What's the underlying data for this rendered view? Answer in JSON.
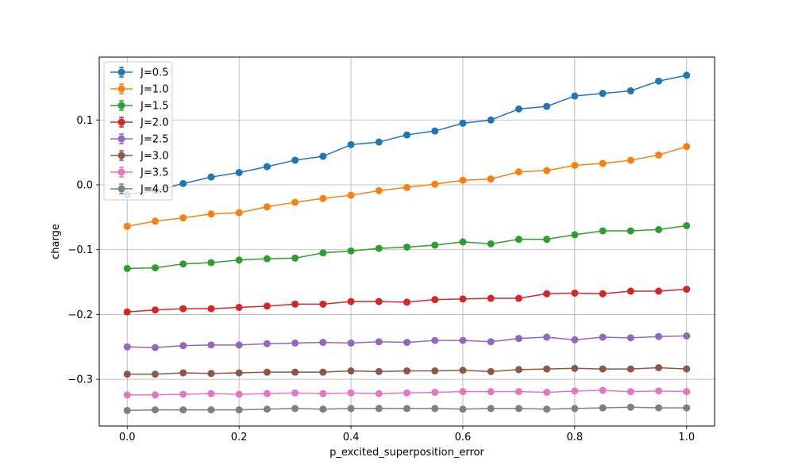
{
  "chart_data": {
    "type": "line",
    "title": "",
    "xlabel": "p_excited_superposition_error",
    "ylabel": "charge",
    "xlim": [
      -0.05,
      1.05
    ],
    "ylim": [
      -0.372,
      0.197
    ],
    "grid": true,
    "error_bars": true,
    "legend_position": "top-left",
    "x_ticks": [
      {
        "value": 0.0,
        "label": "0.0"
      },
      {
        "value": 0.2,
        "label": "0.2"
      },
      {
        "value": 0.4,
        "label": "0.4"
      },
      {
        "value": 0.6,
        "label": "0.6"
      },
      {
        "value": 0.8,
        "label": "0.8"
      },
      {
        "value": 1.0,
        "label": "1.0"
      }
    ],
    "y_ticks": [
      {
        "value": 0.1,
        "label": "0.1"
      },
      {
        "value": 0.0,
        "label": "0.0"
      },
      {
        "value": -0.1,
        "label": "−0.1"
      },
      {
        "value": -0.2,
        "label": "−0.2"
      },
      {
        "value": -0.3,
        "label": "−0.3"
      }
    ],
    "x": [
      0.0,
      0.05,
      0.1,
      0.15,
      0.2,
      0.25,
      0.3,
      0.35,
      0.4,
      0.45,
      0.5,
      0.55,
      0.6,
      0.65,
      0.7,
      0.75,
      0.8,
      0.85,
      0.9,
      0.95,
      1.0
    ],
    "series": [
      {
        "name": "J=0.5",
        "color": "#1f77b4",
        "values": [
          -0.015,
          -0.009,
          0.002,
          0.012,
          0.019,
          0.028,
          0.038,
          0.044,
          0.062,
          0.066,
          0.077,
          0.083,
          0.095,
          0.1,
          0.117,
          0.121,
          0.137,
          0.141,
          0.145,
          0.16,
          0.169
        ]
      },
      {
        "name": "J=1.0",
        "color": "#ff7f0e",
        "values": [
          -0.064,
          -0.056,
          -0.051,
          -0.045,
          -0.043,
          -0.034,
          -0.027,
          -0.021,
          -0.016,
          -0.009,
          -0.004,
          0.001,
          0.007,
          0.009,
          0.02,
          0.022,
          0.03,
          0.033,
          0.038,
          0.046,
          0.059
        ]
      },
      {
        "name": "J=1.5",
        "color": "#2ca02c",
        "values": [
          -0.129,
          -0.128,
          -0.122,
          -0.12,
          -0.116,
          -0.114,
          -0.113,
          -0.105,
          -0.102,
          -0.098,
          -0.096,
          -0.093,
          -0.088,
          -0.091,
          -0.084,
          -0.084,
          -0.077,
          -0.071,
          -0.071,
          -0.069,
          -0.063
        ]
      },
      {
        "name": "J=2.0",
        "color": "#d62728",
        "values": [
          -0.196,
          -0.193,
          -0.191,
          -0.191,
          -0.189,
          -0.187,
          -0.184,
          -0.184,
          -0.18,
          -0.18,
          -0.181,
          -0.177,
          -0.176,
          -0.175,
          -0.175,
          -0.168,
          -0.167,
          -0.168,
          -0.164,
          -0.164,
          -0.161
        ]
      },
      {
        "name": "J=2.5",
        "color": "#9467bd",
        "values": [
          -0.25,
          -0.251,
          -0.248,
          -0.247,
          -0.247,
          -0.245,
          -0.244,
          -0.243,
          -0.244,
          -0.242,
          -0.243,
          -0.24,
          -0.24,
          -0.242,
          -0.237,
          -0.235,
          -0.239,
          -0.235,
          -0.236,
          -0.234,
          -0.233
        ]
      },
      {
        "name": "J=3.0",
        "color": "#8c564b",
        "values": [
          -0.292,
          -0.292,
          -0.29,
          -0.291,
          -0.29,
          -0.289,
          -0.289,
          -0.289,
          -0.287,
          -0.288,
          -0.287,
          -0.287,
          -0.286,
          -0.288,
          -0.285,
          -0.284,
          -0.283,
          -0.284,
          -0.284,
          -0.282,
          -0.284
        ]
      },
      {
        "name": "J=3.5",
        "color": "#e377c2",
        "values": [
          -0.324,
          -0.324,
          -0.323,
          -0.322,
          -0.323,
          -0.322,
          -0.321,
          -0.322,
          -0.321,
          -0.322,
          -0.321,
          -0.32,
          -0.319,
          -0.319,
          -0.319,
          -0.32,
          -0.318,
          -0.317,
          -0.319,
          -0.318,
          -0.319
        ]
      },
      {
        "name": "J=4.0",
        "color": "#7f7f7f",
        "values": [
          -0.348,
          -0.347,
          -0.347,
          -0.347,
          -0.347,
          -0.346,
          -0.345,
          -0.346,
          -0.345,
          -0.345,
          -0.345,
          -0.345,
          -0.346,
          -0.345,
          -0.345,
          -0.346,
          -0.345,
          -0.344,
          -0.343,
          -0.344,
          -0.344
        ]
      }
    ]
  }
}
